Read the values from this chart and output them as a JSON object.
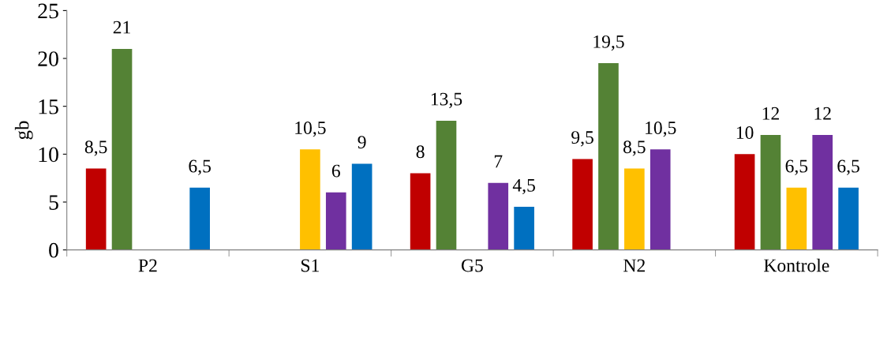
{
  "chart_data": {
    "type": "bar",
    "ylabel": "gb",
    "categories": [
      "P2",
      "S1",
      "G5",
      "N2",
      "Kontrole"
    ],
    "ylim": [
      0,
      25
    ],
    "yticks": [
      0,
      5,
      10,
      15,
      20,
      25
    ],
    "series": [
      {
        "color": "#c00000",
        "values": [
          8.5,
          null,
          8,
          9.5,
          10
        ],
        "value_labels": [
          "8,5",
          null,
          "8",
          "9,5",
          "10"
        ]
      },
      {
        "color": "#548235",
        "values": [
          21,
          null,
          13.5,
          19.5,
          12
        ],
        "value_labels": [
          "21",
          null,
          "13,5",
          "19,5",
          "12"
        ]
      },
      {
        "color": "#ffc000",
        "values": [
          null,
          10.5,
          null,
          8.5,
          6.5
        ],
        "value_labels": [
          null,
          "10,5",
          null,
          "8,5",
          "6,5"
        ]
      },
      {
        "color": "#7030a0",
        "values": [
          null,
          6,
          7,
          10.5,
          12
        ],
        "value_labels": [
          null,
          "6",
          "7",
          "10,5",
          "12"
        ]
      },
      {
        "color": "#0070c0",
        "values": [
          6.5,
          9,
          4.5,
          null,
          6.5
        ],
        "value_labels": [
          "6,5",
          "9",
          "4,5",
          null,
          "6,5"
        ]
      }
    ]
  }
}
